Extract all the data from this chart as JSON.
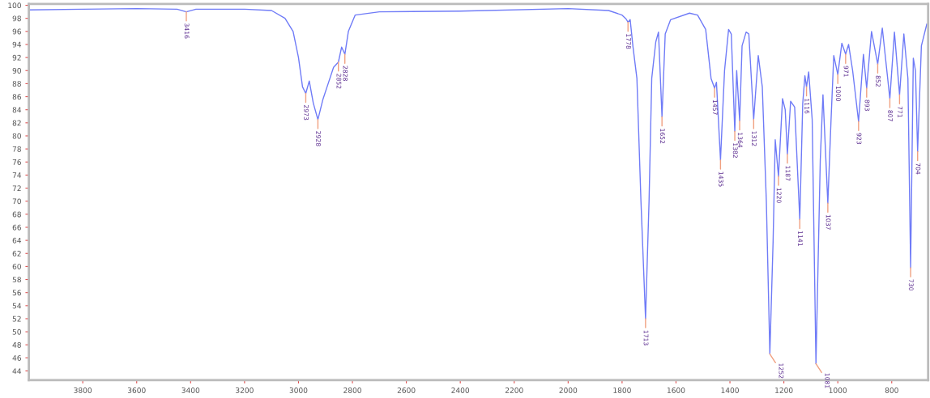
{
  "chart_data": {
    "type": "line",
    "xlim": [
      4000,
      665
    ],
    "ylim": [
      42.6,
      100.2
    ],
    "xticks": [
      3800,
      3600,
      3400,
      3200,
      3000,
      2800,
      2600,
      2400,
      2200,
      2000,
      1800,
      1600,
      1400,
      1200,
      1000,
      800
    ],
    "yticks": [
      44,
      46,
      48,
      50,
      52,
      54,
      56,
      58,
      60,
      62,
      64,
      66,
      68,
      70,
      72,
      74,
      76,
      78,
      80,
      82,
      84,
      86,
      88,
      90,
      92,
      94,
      96,
      98,
      100
    ],
    "grid": false,
    "legend": false,
    "marker": "none",
    "line_style": "solid",
    "series": [
      {
        "color": "#6f7bf7",
        "x": [
          4000,
          3800,
          3600,
          3450,
          3416,
          3380,
          3200,
          3100,
          3050,
          3020,
          3000,
          2985,
          2973,
          2960,
          2945,
          2928,
          2910,
          2890,
          2870,
          2852,
          2840,
          2828,
          2815,
          2790,
          2700,
          2400,
          2000,
          1850,
          1800,
          1785,
          1778,
          1770,
          1760,
          1745,
          1730,
          1713,
          1700,
          1690,
          1675,
          1665,
          1652,
          1640,
          1620,
          1550,
          1520,
          1490,
          1470,
          1457,
          1450,
          1435,
          1420,
          1405,
          1395,
          1382,
          1375,
          1364,
          1355,
          1340,
          1330,
          1312,
          1295,
          1280,
          1265,
          1252,
          1240,
          1232,
          1220,
          1205,
          1195,
          1187,
          1175,
          1160,
          1141,
          1130,
          1122,
          1116,
          1108,
          1095,
          1081,
          1065,
          1055,
          1037,
          1025,
          1015,
          1000,
          985,
          971,
          960,
          945,
          923,
          905,
          893,
          875,
          852,
          835,
          807,
          790,
          771,
          755,
          740,
          730,
          720,
          712,
          704,
          690,
          670
        ],
        "values": [
          99.3,
          99.4,
          99.5,
          99.4,
          99.0,
          99.4,
          99.4,
          99.2,
          98.0,
          96.0,
          92.0,
          87.5,
          86.5,
          88.4,
          85.0,
          82.5,
          85.5,
          88.0,
          90.5,
          91.3,
          93.6,
          92.5,
          96.0,
          98.5,
          99.0,
          99.1,
          99.5,
          99.2,
          98.5,
          97.9,
          97.4,
          97.8,
          93.8,
          88.8,
          70.0,
          52.0,
          70.0,
          88.8,
          94.4,
          95.9,
          82.9,
          95.6,
          97.8,
          98.8,
          98.5,
          96.3,
          88.8,
          87.3,
          88.2,
          76.3,
          90.0,
          96.3,
          95.6,
          80.7,
          90.0,
          82.3,
          93.8,
          95.9,
          95.6,
          82.5,
          92.3,
          87.5,
          70.0,
          46.6,
          63.8,
          79.4,
          73.8,
          85.7,
          84.0,
          77.2,
          85.3,
          84.4,
          67.2,
          85.0,
          89.2,
          87.5,
          89.8,
          82.5,
          45.1,
          76.3,
          86.3,
          69.7,
          82.5,
          92.3,
          89.4,
          94.2,
          92.5,
          94.0,
          90.0,
          82.2,
          92.5,
          87.3,
          96.0,
          91.0,
          96.5,
          85.7,
          95.9,
          86.3,
          95.6,
          88.8,
          59.8,
          91.9,
          90.0,
          77.6,
          93.8,
          97.1
        ]
      }
    ],
    "annotations": [
      {
        "text": "3416",
        "x": 3416,
        "y": 99.0
      },
      {
        "text": "2973",
        "x": 2973,
        "y": 86.5
      },
      {
        "text": "2928",
        "x": 2928,
        "y": 82.5
      },
      {
        "text": "2852",
        "x": 2852,
        "y": 91.3
      },
      {
        "text": "2828",
        "x": 2828,
        "y": 92.5
      },
      {
        "text": "1778",
        "x": 1778,
        "y": 97.4
      },
      {
        "text": "1713",
        "x": 1713,
        "y": 52.0
      },
      {
        "text": "1652",
        "x": 1652,
        "y": 82.9
      },
      {
        "text": "1457",
        "x": 1457,
        "y": 87.3
      },
      {
        "text": "1435",
        "x": 1435,
        "y": 76.3
      },
      {
        "text": "1382",
        "x": 1382,
        "y": 80.7
      },
      {
        "text": "1364",
        "x": 1364,
        "y": 82.3
      },
      {
        "text": "1312",
        "x": 1312,
        "y": 82.5
      },
      {
        "text": "1252",
        "x": 1252,
        "y": 46.6
      },
      {
        "text": "1220",
        "x": 1220,
        "y": 73.8
      },
      {
        "text": "1187",
        "x": 1187,
        "y": 77.2
      },
      {
        "text": "1141",
        "x": 1141,
        "y": 67.2
      },
      {
        "text": "1116",
        "x": 1116,
        "y": 87.5
      },
      {
        "text": "1081",
        "x": 1081,
        "y": 45.1
      },
      {
        "text": "1037",
        "x": 1037,
        "y": 69.7
      },
      {
        "text": "1000",
        "x": 1000,
        "y": 89.4
      },
      {
        "text": "971",
        "x": 971,
        "y": 92.5
      },
      {
        "text": "923",
        "x": 923,
        "y": 82.2
      },
      {
        "text": "893",
        "x": 893,
        "y": 87.3
      },
      {
        "text": "852",
        "x": 852,
        "y": 91.0
      },
      {
        "text": "807",
        "x": 807,
        "y": 85.7
      },
      {
        "text": "771",
        "x": 771,
        "y": 86.3
      },
      {
        "text": "730",
        "x": 730,
        "y": 59.8
      },
      {
        "text": "704",
        "x": 704,
        "y": 77.6
      }
    ]
  }
}
